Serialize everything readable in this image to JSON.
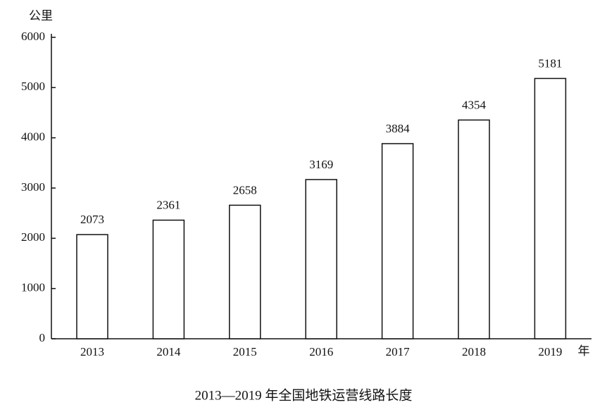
{
  "chart_data": {
    "type": "bar",
    "title": "2013—2019 年全国地铁运营线路长度",
    "y_label": "公里",
    "x_label": "年",
    "categories": [
      "2013",
      "2014",
      "2015",
      "2016",
      "2017",
      "2018",
      "2019"
    ],
    "values": [
      2073,
      2361,
      2658,
      3169,
      3884,
      4354,
      5181
    ],
    "color": "#ffffff",
    "ylim": [
      0,
      6000
    ],
    "yticks": [
      0,
      1000,
      2000,
      3000,
      4000,
      5000,
      6000
    ]
  }
}
